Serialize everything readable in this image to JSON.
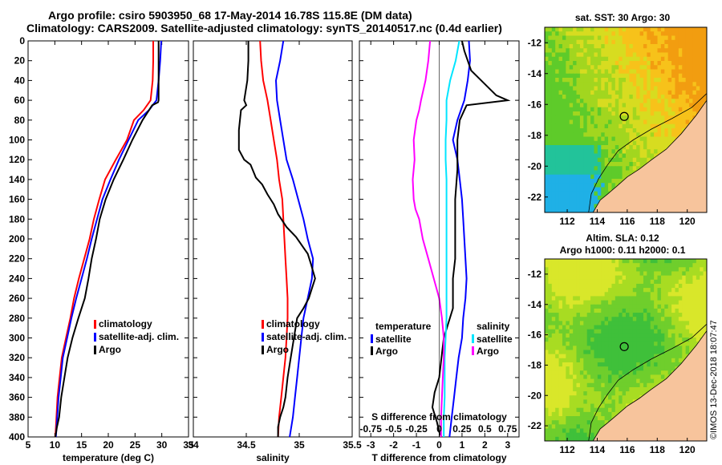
{
  "titles": {
    "line1": "Argo profile: csiro 5903950_68 17-May-2014 16.78S 115.8E (DM data)",
    "line2": "Climatology: CARS2009. Satellite-adjusted climatology: synTS_20140517.nc (0.4d earlier)"
  },
  "colors": {
    "climatology": "#ff0000",
    "satellite": "#0000ff",
    "argo": "#000000",
    "sat_s": "#00e5ff",
    "argo_s": "#ff00ff",
    "land": "#f7c49c",
    "coast": "#000000"
  },
  "chart_data": [
    {
      "id": "temperature",
      "type": "line",
      "xlabel": "temperature (deg C)",
      "ylabel": "",
      "xlim": [
        5,
        35
      ],
      "ylim": [
        400,
        0
      ],
      "xticks": [
        "5",
        "10",
        "15",
        "20",
        "25",
        "30",
        "35"
      ],
      "yticks": [
        "0",
        "20",
        "40",
        "60",
        "80",
        "100",
        "120",
        "140",
        "160",
        "180",
        "200",
        "220",
        "240",
        "260",
        "280",
        "300",
        "320",
        "340",
        "360",
        "380",
        "400"
      ],
      "legend": [
        "climatology",
        "satellite-adj. clim.",
        "Argo"
      ],
      "series": [
        {
          "name": "climatology",
          "color": "#ff0000",
          "x": [
            28.4,
            28.4,
            28.3,
            27.9,
            26.6,
            24.8,
            23.5,
            21.4,
            19.4,
            18.3,
            17.3,
            16.5,
            15.5,
            14.5,
            13.6,
            12.9,
            12.1,
            11.3,
            10.9,
            10.5,
            10.1
          ],
          "y": [
            0,
            20,
            40,
            60,
            70,
            80,
            100,
            120,
            140,
            160,
            180,
            200,
            220,
            240,
            260,
            280,
            300,
            320,
            340,
            360,
            400
          ]
        },
        {
          "name": "satellite-adj. clim.",
          "color": "#0000ff",
          "x": [
            29.9,
            29.7,
            29.4,
            29.0,
            27.6,
            25.6,
            23.8,
            22.0,
            20.4,
            18.9,
            17.9,
            16.9,
            16.0,
            15.0,
            14.0,
            13.1,
            12.3,
            11.5,
            11.1,
            10.7,
            10.2
          ],
          "y": [
            0,
            20,
            40,
            60,
            70,
            80,
            100,
            120,
            140,
            160,
            180,
            200,
            220,
            240,
            260,
            280,
            300,
            320,
            340,
            360,
            400
          ]
        },
        {
          "name": "Argo",
          "color": "#000000",
          "x": [
            29.4,
            29.4,
            29.4,
            29.4,
            29.3,
            28.2,
            26.4,
            24.5,
            22.8,
            21.0,
            19.5,
            18.4,
            17.7,
            16.9,
            16.3,
            15.6,
            14.4,
            13.3,
            12.4,
            11.8,
            11.2,
            10.8,
            10.4,
            10.1
          ],
          "y": [
            0,
            20,
            40,
            60,
            62,
            65,
            80,
            100,
            120,
            140,
            160,
            180,
            200,
            220,
            240,
            260,
            280,
            300,
            320,
            340,
            360,
            380,
            390,
            400
          ]
        }
      ]
    },
    {
      "id": "salinity",
      "type": "line",
      "xlabel": "salinity",
      "ylabel": "",
      "xlim": [
        34,
        35.5
      ],
      "ylim": [
        400,
        0
      ],
      "xticks": [
        "34",
        "34.5",
        "35",
        "35.5"
      ],
      "legend": [
        "climatology",
        "satellite-adj. clim.",
        "Argo"
      ],
      "series": [
        {
          "name": "climatology",
          "color": "#ff0000",
          "x": [
            34.63,
            34.64,
            34.66,
            34.7,
            34.73,
            34.76,
            34.79,
            34.81,
            34.84,
            34.85,
            34.86,
            34.87,
            34.88,
            34.89,
            34.89,
            34.88,
            34.87,
            34.85,
            34.83,
            34.81,
            34.8
          ],
          "y": [
            0,
            20,
            40,
            60,
            80,
            100,
            120,
            140,
            160,
            180,
            200,
            220,
            240,
            260,
            280,
            300,
            320,
            340,
            360,
            380,
            400
          ]
        },
        {
          "name": "satellite-adj. clim.",
          "color": "#0000ff",
          "x": [
            34.85,
            34.82,
            34.78,
            34.79,
            34.82,
            34.85,
            34.88,
            34.94,
            34.99,
            35.04,
            35.08,
            35.13,
            35.12,
            35.08,
            35.04,
            35.02,
            35.0,
            34.98,
            34.96,
            34.94,
            34.91
          ],
          "y": [
            0,
            20,
            40,
            60,
            80,
            100,
            120,
            140,
            160,
            180,
            200,
            220,
            240,
            260,
            280,
            300,
            320,
            340,
            360,
            380,
            400
          ]
        },
        {
          "name": "Argo",
          "color": "#000000",
          "x": [
            34.52,
            34.52,
            34.51,
            34.48,
            34.5,
            34.45,
            34.43,
            34.43,
            34.48,
            34.54,
            34.56,
            34.59,
            34.65,
            34.7,
            34.76,
            34.8,
            34.88,
            34.97,
            35.08,
            35.11,
            35.15,
            35.12,
            35.09,
            35.04,
            34.98,
            34.95,
            34.92,
            34.89,
            34.87,
            34.85,
            34.82,
            34.8,
            34.8
          ],
          "y": [
            0,
            20,
            40,
            60,
            65,
            70,
            90,
            110,
            120,
            125,
            130,
            138,
            145,
            155,
            165,
            175,
            188,
            198,
            215,
            225,
            240,
            250,
            260,
            270,
            280,
            300,
            320,
            340,
            360,
            370,
            380,
            390,
            400
          ]
        }
      ]
    },
    {
      "id": "difference",
      "type": "line",
      "xlabel": "T difference from climatology",
      "xlabel2": "S difference from climatology",
      "xlim": [
        -3.5,
        3.5
      ],
      "ylim": [
        400,
        0
      ],
      "xticks": [
        "-3",
        "-2",
        "-1",
        "0",
        "1",
        "2",
        "3"
      ],
      "xticks2": [
        "-0.75",
        "-0.5",
        "-0.25",
        "0",
        "0.25",
        "0.5",
        "0.75"
      ],
      "legend_t": {
        "header": "temperature",
        "items": [
          "satellite",
          "Argo"
        ]
      },
      "legend_s": {
        "header": "salinity",
        "items": [
          "satellite",
          "Argo"
        ]
      },
      "series": [
        {
          "name": "T satellite",
          "color": "#0000ff",
          "x": [
            1.3,
            1.35,
            1.25,
            1.1,
            0.8,
            0.6,
            0.8,
            0.9,
            1.0,
            1.05,
            1.1,
            1.15,
            1.2,
            1.15,
            1.05,
            1.0,
            0.85,
            0.75,
            0.65,
            0.55,
            0.45
          ],
          "y": [
            0,
            20,
            40,
            60,
            80,
            100,
            120,
            140,
            160,
            180,
            200,
            220,
            240,
            260,
            280,
            300,
            320,
            340,
            360,
            380,
            400
          ]
        },
        {
          "name": "T Argo",
          "color": "#000000",
          "x": [
            1.0,
            1.1,
            1.4,
            2.5,
            3.0,
            1.2,
            0.9,
            0.8,
            0.8,
            0.7,
            0.7,
            0.7,
            0.6,
            0.6,
            0.6,
            0.4,
            0.2,
            0.1,
            0.0,
            -0.2,
            -0.3,
            -0.1,
            0.0,
            0.1
          ],
          "y": [
            0,
            10,
            30,
            55,
            60,
            65,
            80,
            100,
            130,
            160,
            190,
            220,
            240,
            260,
            270,
            285,
            300,
            320,
            340,
            355,
            370,
            385,
            395,
            400
          ]
        },
        {
          "name": "S satellite",
          "color": "#00e5ff",
          "x": [
            0.22,
            0.18,
            0.12,
            0.08,
            0.08,
            0.07,
            0.07,
            0.08,
            0.08,
            0.08,
            0.08,
            0.08,
            0.08,
            0.08,
            0.08,
            0.07,
            0.06,
            0.06,
            0.06,
            0.05,
            0.05
          ],
          "y": [
            0,
            20,
            40,
            60,
            80,
            100,
            120,
            140,
            160,
            180,
            200,
            220,
            240,
            260,
            280,
            300,
            320,
            340,
            360,
            380,
            400
          ]
        },
        {
          "name": "S Argo",
          "color": "#ff00ff",
          "x": [
            -0.1,
            -0.12,
            -0.15,
            -0.2,
            -0.22,
            -0.25,
            -0.28,
            -0.27,
            -0.29,
            -0.28,
            -0.26,
            -0.22,
            -0.18,
            -0.12,
            -0.06,
            0.0,
            0.03,
            0.05,
            0.05,
            0.04,
            0.03,
            0.02,
            0.02,
            0.02
          ],
          "y": [
            0,
            20,
            40,
            60,
            70,
            80,
            100,
            120,
            140,
            160,
            170,
            180,
            200,
            220,
            240,
            260,
            280,
            300,
            320,
            340,
            360,
            380,
            390,
            400
          ]
        }
      ]
    },
    {
      "id": "sst_map",
      "type": "heatmap",
      "title": "sat. SST: 30 Argo: 30",
      "xticks": [
        "112",
        "114",
        "116",
        "118",
        "120"
      ],
      "yticks": [
        "-12",
        "-14",
        "-16",
        "-18",
        "-20",
        "-22"
      ],
      "xlim": [
        110.5,
        121.3
      ],
      "ylim": [
        -23,
        -11
      ],
      "marker": {
        "lon": 115.8,
        "lat": -16.78
      }
    },
    {
      "id": "sla_map",
      "type": "heatmap",
      "title": "Altim. SLA: 0.12",
      "subtitle": "Argo h1000: 0.11 h2000: 0.1",
      "xticks": [
        "112",
        "114",
        "116",
        "118",
        "120"
      ],
      "yticks": [
        "-12",
        "-14",
        "-16",
        "-18",
        "-20",
        "-22"
      ],
      "xlim": [
        110.5,
        121.3
      ],
      "ylim": [
        -23,
        -11
      ],
      "marker": {
        "lon": 115.8,
        "lat": -16.78
      }
    }
  ],
  "credit": "©IMOS 13-Dec-2018 18:07:47"
}
